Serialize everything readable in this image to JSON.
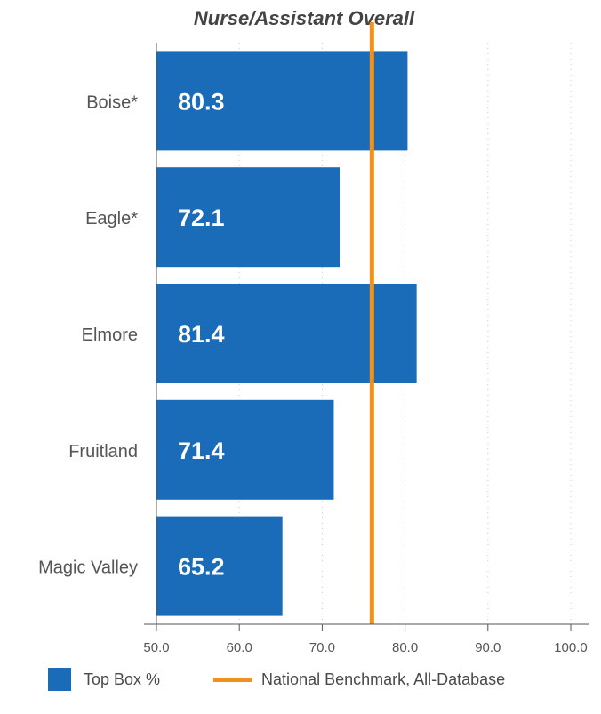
{
  "chart_data": {
    "type": "bar",
    "orientation": "horizontal",
    "title": "Nurse/Assistant Overall",
    "categories": [
      "Boise*",
      "Eagle*",
      "Elmore",
      "Fruitland",
      "Magic Valley"
    ],
    "series": [
      {
        "name": "Top Box %",
        "values": [
          80.3,
          72.1,
          81.4,
          71.4,
          65.2
        ]
      }
    ],
    "value_labels": [
      "80.3",
      "72.1",
      "81.4",
      "71.4",
      "65.2"
    ],
    "benchmark": {
      "name": "National Benchmark, All-Database",
      "value": 76.0
    },
    "xlim": [
      50.0,
      100.0
    ],
    "x_ticks": [
      50.0,
      60.0,
      70.0,
      80.0,
      90.0,
      100.0
    ],
    "x_tick_labels": [
      "50.0",
      "60.0",
      "70.0",
      "80.0",
      "90.0",
      "100.0"
    ],
    "grid": "vertical-dotted",
    "legend_position": "bottom",
    "colors": {
      "bar": "#1a6bb8",
      "benchmark": "#f0901e",
      "grid": "#c8c8c8",
      "axis": "#555555"
    }
  }
}
